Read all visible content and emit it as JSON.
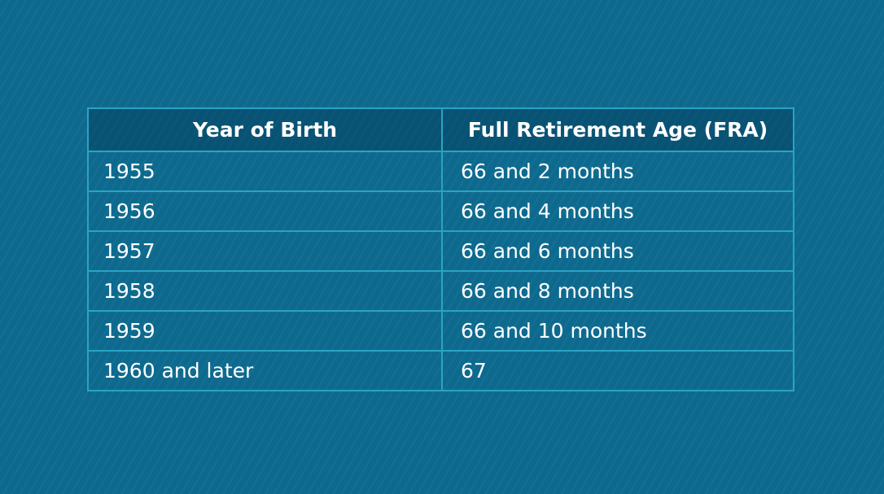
{
  "table": {
    "header": [
      "Year of Birth",
      "Full Retirement Age (FRA)"
    ],
    "rows": [
      [
        "1955",
        "66 and 2 months"
      ],
      [
        "1956",
        "66 and 4 months"
      ],
      [
        "1957",
        "66 and 6 months"
      ],
      [
        "1958",
        "66 and 8 months"
      ],
      [
        "1959",
        "66 and 10 months"
      ],
      [
        "1960 and later",
        "67"
      ]
    ]
  }
}
